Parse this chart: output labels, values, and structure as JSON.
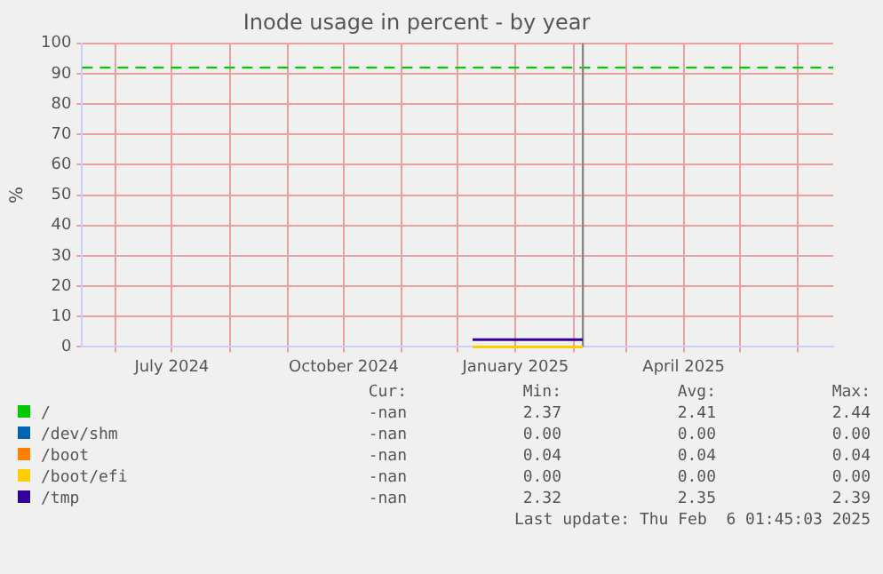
{
  "chart_data": {
    "type": "line",
    "title": "Inode usage in percent - by year",
    "ylabel": "%",
    "xlim": [
      "2024-05-14",
      "2025-06-20"
    ],
    "xticks": [
      {
        "value": "2024-06-01",
        "label": null
      },
      {
        "value": "2024-07-01",
        "label": "July 2024"
      },
      {
        "value": "2024-08-01",
        "label": null
      },
      {
        "value": "2024-09-01",
        "label": null
      },
      {
        "value": "2024-10-01",
        "label": "October 2024"
      },
      {
        "value": "2024-11-01",
        "label": null
      },
      {
        "value": "2024-12-01",
        "label": null
      },
      {
        "value": "2025-01-01",
        "label": "January 2025"
      },
      {
        "value": "2025-02-01",
        "label": null
      },
      {
        "value": "2025-03-01",
        "label": null
      },
      {
        "value": "2025-04-01",
        "label": "April 2025"
      },
      {
        "value": "2025-05-01",
        "label": null
      },
      {
        "value": "2025-06-01",
        "label": null
      }
    ],
    "ylim": [
      0,
      100
    ],
    "yticks": [
      0,
      10,
      20,
      30,
      40,
      50,
      60,
      70,
      80,
      90,
      100
    ],
    "grid": true,
    "legend": "bottom",
    "line_style": "solid",
    "marker": "none",
    "series": [
      {
        "name": "/",
        "color": "#00cc00"
      },
      {
        "name": "/dev/shm",
        "color": "#0066b3"
      },
      {
        "name": "/boot",
        "color": "#ff8000"
      },
      {
        "name": "/boot/efi",
        "color": "#ffcc00",
        "x": [
          "2024-12-09",
          "2025-02-06"
        ],
        "values": [
          0,
          0
        ]
      },
      {
        "name": "/tmp",
        "color": "#330099",
        "x": [
          "2024-12-09",
          "2025-02-06"
        ],
        "values": [
          2.35,
          2.35
        ]
      }
    ],
    "ref_lines": [
      {
        "axis": "y",
        "value": 92,
        "color": "#00cc00",
        "line_style": "dashed"
      },
      {
        "axis": "x",
        "value": "2025-02-06",
        "color": "#888888",
        "line_style": "solid"
      }
    ],
    "annotations": [
      "Cur:",
      "Min:",
      "Avg:",
      "Max:",
      "-nan",
      "2.37",
      "2.41",
      "2.44",
      "-nan",
      "0.00",
      "0.00",
      "0.00",
      "-nan",
      "0.04",
      "0.04",
      "0.04",
      "-nan",
      "0.00",
      "0.00",
      "0.00",
      "-nan",
      "2.32",
      "2.35",
      "2.39",
      "Last update: Thu Feb  6 01:45:03 2025"
    ]
  }
}
